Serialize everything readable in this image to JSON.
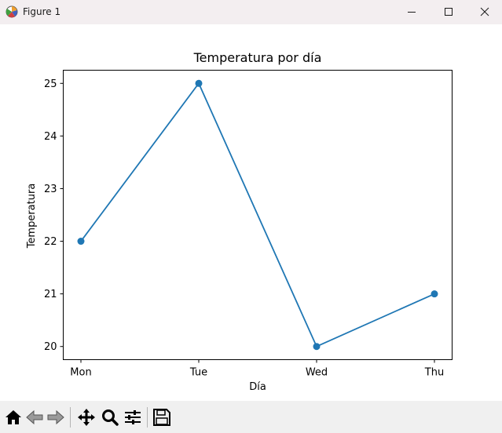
{
  "window": {
    "title": "Figure 1",
    "controls": {
      "minimize": "minimize",
      "maximize": "maximize",
      "close": "close"
    }
  },
  "chart_data": {
    "type": "line",
    "title": "Temperatura por día",
    "xlabel": "Día",
    "ylabel": "Temperatura",
    "categories": [
      "Mon",
      "Tue",
      "Wed",
      "Thu"
    ],
    "values": [
      22,
      25,
      20,
      21
    ],
    "ylim": [
      19.75,
      25.25
    ],
    "yticks": [
      20,
      21,
      22,
      23,
      24,
      25
    ],
    "marker": "circle",
    "grid": false,
    "color": "#1f77b4"
  },
  "toolbar": {
    "buttons": [
      "home-icon",
      "back-arrow-icon",
      "forward-arrow-icon",
      "pan-move-icon",
      "zoom-magnifier-icon",
      "configure-subplots-icon",
      "save-floppy-icon"
    ]
  }
}
